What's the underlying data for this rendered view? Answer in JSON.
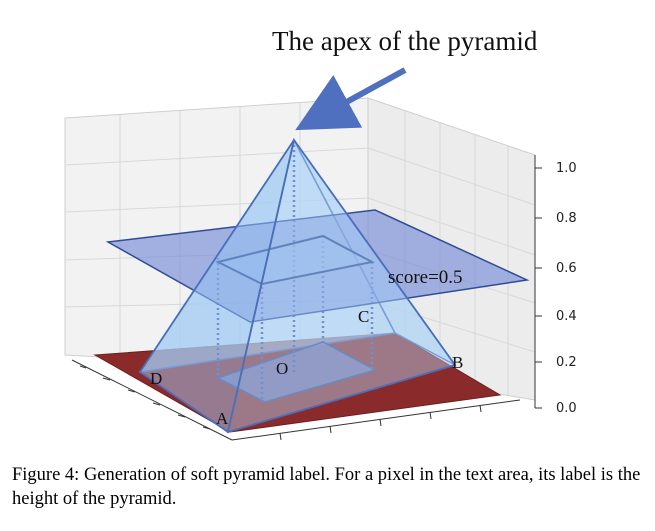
{
  "annotation": {
    "apex_text": "The apex of the pyramid"
  },
  "labels": {
    "score": "score=0.5",
    "a": "A",
    "b": "B",
    "c": "C",
    "d": "D",
    "o": "O"
  },
  "chart_data": {
    "type": "3d-surface",
    "zlim": [
      0.0,
      1.0
    ],
    "zticks": [
      "1.0",
      "0.8",
      "0.6",
      "0.4",
      "0.2",
      "0.0"
    ],
    "grid": true,
    "plane_score": 0.5,
    "apex_height": 1.0
  },
  "caption": "Figure 4: Generation of soft pyramid label. For a pixel in the text area, its label is the height of the pyramid.",
  "colors": {
    "floor": "#8b2a2a",
    "pyramid": "#8fc0ee",
    "plane": "#7b93d6",
    "edge": "#4a6fba",
    "arrow": "#4f6fbf"
  }
}
